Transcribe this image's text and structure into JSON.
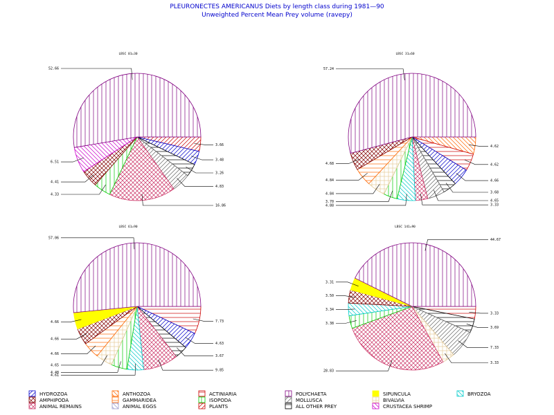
{
  "title": "PLEURONECTES AMERICANUS Diets by length class during 1981—90",
  "subtitle": "Unweighted Percent Mean Prey volume (ravepy)",
  "categories": {
    "HYDROZOA": {
      "color": "#0000cc",
      "pattern": "diag-fwd"
    },
    "AMPHIPODA": {
      "color": "#800000",
      "pattern": "crosshatch-diag"
    },
    "ANIMAL_REMAINS": {
      "color": "#cc3366",
      "pattern": "crosshatch-diag"
    },
    "ANTHOZOA": {
      "color": "#ff6600",
      "pattern": "diag-back"
    },
    "GAMMARIDEA": {
      "color": "#ff6600",
      "pattern": "horizontal"
    },
    "ANIMAL_EGGS": {
      "color": "#9999cc",
      "pattern": "diag-back"
    },
    "ACTINIARIA": {
      "color": "#cc0000",
      "pattern": "horizontal"
    },
    "ISOPODA": {
      "color": "#00cc00",
      "pattern": "vertical"
    },
    "PLANTS": {
      "color": "#cc0000",
      "pattern": "diag-fwd"
    },
    "POLYCHAETA": {
      "color": "#800080",
      "pattern": "vertical"
    },
    "MOLLUSCA": {
      "color": "#666666",
      "pattern": "diag-fwd"
    },
    "ALL_OTHER_PREY": {
      "color": "#000000",
      "pattern": "horizontal"
    },
    "SIPUNCULA": {
      "color": "#ffff00",
      "pattern": "solid"
    },
    "BIVALVIA": {
      "color": "#e6cc99",
      "pattern": "crosshatch"
    },
    "CRUSTACEA_SHRIMP": {
      "color": "#cc00cc",
      "pattern": "diag-back"
    },
    "BRYOZOA": {
      "color": "#00cccc",
      "pattern": "diag-back"
    }
  },
  "legend": {
    "items": [
      {
        "key": "HYDROZOA",
        "label": "HYDROZOA"
      },
      {
        "key": "AMPHIPODA",
        "label": "AMPHIPODA"
      },
      {
        "key": "ANIMAL_REMAINS",
        "label": "ANIMAL REMAINS"
      },
      {
        "key": "ANTHOZOA",
        "label": "ANTHOZOA"
      },
      {
        "key": "GAMMARIDEA",
        "label": "GAMMARIDEA"
      },
      {
        "key": "ANIMAL_EGGS",
        "label": "ANIMAL EGGS"
      },
      {
        "key": "ACTINIARIA",
        "label": "ACTINIARIA"
      },
      {
        "key": "ISOPODA",
        "label": "ISOPODA"
      },
      {
        "key": "PLANTS",
        "label": "PLANTS"
      },
      {
        "key": "POLYCHAETA",
        "label": "POLYCHAETA"
      },
      {
        "key": "MOLLUSCA",
        "label": "MOLLUSCA"
      },
      {
        "key": "ALL_OTHER_PREY",
        "label": "ALL OTHER PREY"
      },
      {
        "key": "SIPUNCULA",
        "label": "SIPUNCULA"
      },
      {
        "key": "BIVALVIA",
        "label": "BIVALVIA"
      },
      {
        "key": "CRUSTACEA_SHRIMP",
        "label": "CRUSTACEA SHRIMP"
      },
      {
        "key": "BRYOZOA",
        "label": "BRYOZOA"
      }
    ]
  },
  "chart_data": [
    {
      "type": "pie",
      "title": "LBSC 01=30",
      "start_angle_deg": 0,
      "slices": [
        {
          "category": "PLANTS",
          "value": 3.66,
          "label": "3.66"
        },
        {
          "category": "HYDROZOA",
          "value": 3.48,
          "label": "3.48"
        },
        {
          "category": "ALL_OTHER_PREY",
          "value": 3.26,
          "label": "3.26"
        },
        {
          "category": "MOLLUSCA",
          "value": 4.83,
          "label": "4.83"
        },
        {
          "category": "ANIMAL_REMAINS",
          "value": 16.86,
          "label": "16.86"
        },
        {
          "category": "ISOPODA",
          "value": 4.33,
          "label": "4.33"
        },
        {
          "category": "AMPHIPODA",
          "value": 4.41,
          "label": "4.41"
        },
        {
          "category": "CRUSTACEA_SHRIMP",
          "value": 6.51,
          "label": "6.51"
        },
        {
          "category": "POLYCHAETA",
          "value": 52.66,
          "label": "52.66"
        }
      ]
    },
    {
      "type": "pie",
      "title": "LBSC 31=60",
      "start_angle_deg": 0,
      "slices": [
        {
          "category": "ANTHOZOA",
          "value": 4.62,
          "label": "4.62"
        },
        {
          "category": "ACTINIARIA",
          "value": 4.62,
          "label": "4.62"
        },
        {
          "category": "HYDROZOA",
          "value": 4.66,
          "label": "4.66"
        },
        {
          "category": "ALL_OTHER_PREY",
          "value": 3.68,
          "label": "3.68"
        },
        {
          "category": "MOLLUSCA",
          "value": 4.65,
          "label": "4.65"
        },
        {
          "category": "ANIMAL_REMAINS",
          "value": 3.33,
          "label": "3.33"
        },
        {
          "category": "BRYOZOA",
          "value": 4.88,
          "label": "4.88"
        },
        {
          "category": "ISOPODA",
          "value": 3.7,
          "label": "3.70"
        },
        {
          "category": "BIVALVIA",
          "value": 4.84,
          "label": "4.84"
        },
        {
          "category": "GAMMARIDEA",
          "value": 4.84,
          "label": "4.84"
        },
        {
          "category": "AMPHIPODA",
          "value": 4.68,
          "label": "4.68"
        },
        {
          "category": "POLYCHAETA",
          "value": 57.24,
          "label": "57.24"
        }
      ]
    },
    {
      "type": "pie",
      "title": "LBSC 61=90",
      "start_angle_deg": 0,
      "slices": [
        {
          "category": "ACTINIARIA",
          "value": 7.73,
          "label": "7.73"
        },
        {
          "category": "HYDROZOA",
          "value": 4.63,
          "label": "4.63"
        },
        {
          "category": "ALL_OTHER_PREY",
          "value": 3.67,
          "label": "3.67"
        },
        {
          "category": "ANIMAL_REMAINS",
          "value": 9.85,
          "label": "9.85"
        },
        {
          "category": "BRYOZOA",
          "value": 4.61,
          "label": "4.61"
        },
        {
          "category": "ISOPODA",
          "value": 4.48,
          "label": "4.48"
        },
        {
          "category": "BIVALVIA",
          "value": 4.65,
          "label": "4.65"
        },
        {
          "category": "GAMMARIDEA",
          "value": 4.66,
          "label": "4.66"
        },
        {
          "category": "AMPHIPODA",
          "value": 4.66,
          "label": "4.66"
        },
        {
          "category": "SIPUNCULA",
          "value": 4.66,
          "label": "4.66"
        },
        {
          "category": "POLYCHAETA",
          "value": 57.06,
          "label": "57.06"
        }
      ]
    },
    {
      "type": "pie",
      "title": "LBSC 141=90",
      "start_angle_deg": 0,
      "slices": [
        {
          "category": "ACTINIARIA",
          "value": 3.33,
          "label": "3.33"
        },
        {
          "category": "ALL_OTHER_PREY",
          "value": 3.69,
          "label": "3.69"
        },
        {
          "category": "MOLLUSCA",
          "value": 7.33,
          "label": "7.33"
        },
        {
          "category": "BIVALVIA",
          "value": 3.33,
          "label": "3.33"
        },
        {
          "category": "ANIMAL_REMAINS",
          "value": 28.83,
          "label": "28.83"
        },
        {
          "category": "ISOPODA",
          "value": 3.38,
          "label": "3.38"
        },
        {
          "category": "BRYOZOA",
          "value": 3.34,
          "label": "3.34"
        },
        {
          "category": "AMPHIPODA",
          "value": 3.5,
          "label": "3.50"
        },
        {
          "category": "SIPUNCULA",
          "value": 3.31,
          "label": "3.31"
        },
        {
          "category": "POLYCHAETA",
          "value": 44.67,
          "label": "44.67"
        }
      ]
    }
  ]
}
